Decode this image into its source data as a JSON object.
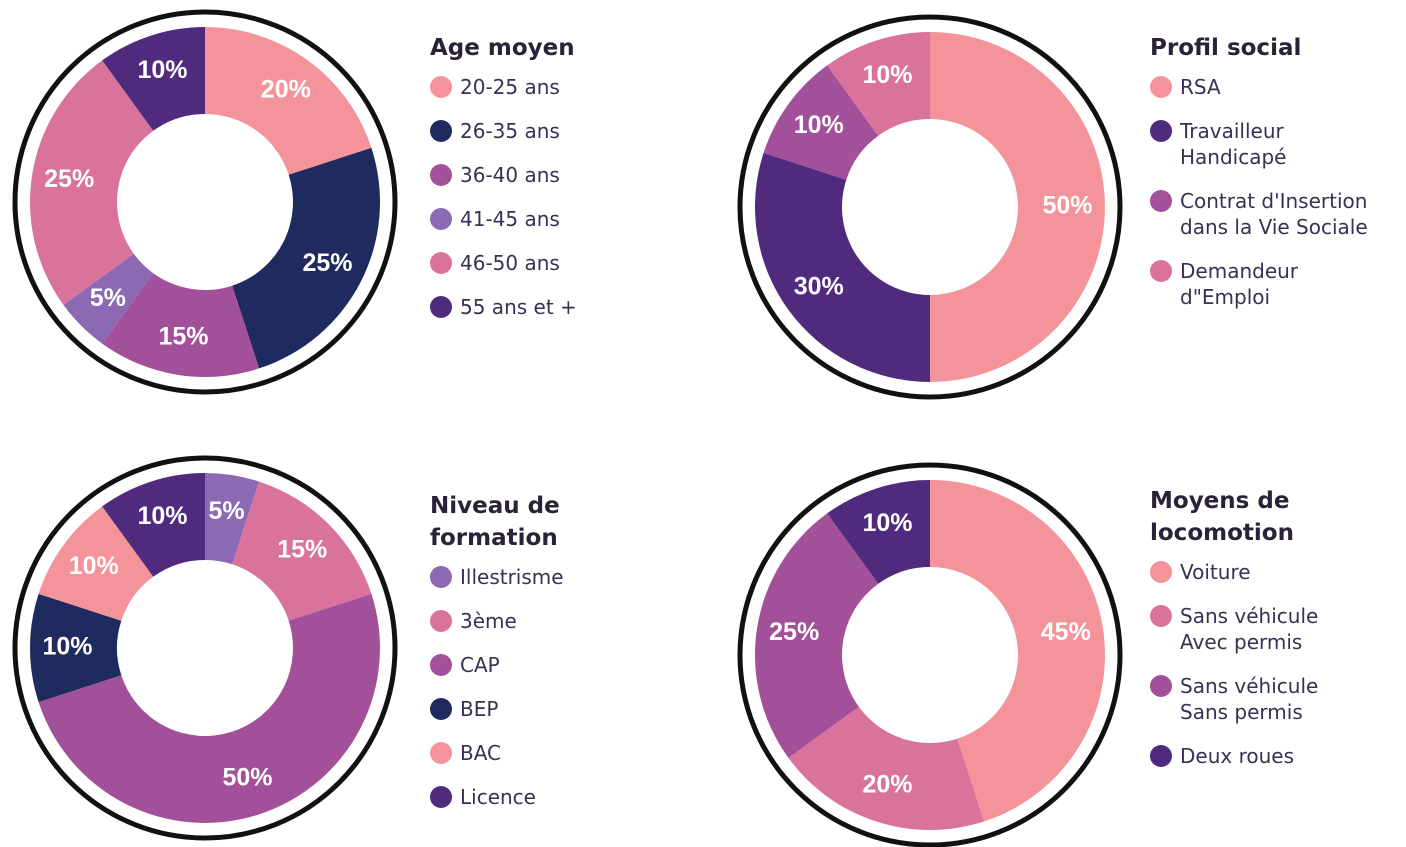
{
  "chart_data": [
    {
      "type": "pie",
      "title": "Age moyen",
      "categories": [
        "20-25 ans",
        "26-35 ans",
        "36-40 ans",
        "41-45 ans",
        "46-50 ans",
        "55 ans et +"
      ],
      "values": [
        20,
        25,
        15,
        5,
        25,
        10
      ],
      "value_labels": [
        "20%",
        "25%",
        "15%",
        "5%",
        "25%",
        "10%"
      ],
      "colors": [
        "#f4949a",
        "#1f2b5e",
        "#a3509a",
        "#8b6ab3",
        "#d9739c",
        "#4f2a7d"
      ]
    },
    {
      "type": "pie",
      "title": "Profil social",
      "categories": [
        "RSA",
        "Travailleur\nHandicapé",
        "Contrat d'Insertion\ndans la Vie Sociale",
        "Demandeur\nd\"Emploi"
      ],
      "values": [
        50,
        30,
        10,
        10
      ],
      "value_labels": [
        "50%",
        "30%",
        "10%",
        "10%"
      ],
      "colors": [
        "#f4949a",
        "#4f2a7d",
        "#a3509a",
        "#d9739c"
      ]
    },
    {
      "type": "pie",
      "title": "Niveau de\nformation",
      "categories": [
        "Illestrisme",
        "3ème",
        "CAP",
        "BEP",
        "BAC",
        "Licence"
      ],
      "values": [
        5,
        15,
        50,
        10,
        10,
        10
      ],
      "value_labels": [
        "5%",
        "15%",
        "50%",
        "10%",
        "10%",
        "10%"
      ],
      "colors": [
        "#8b6ab3",
        "#d9739c",
        "#a3509a",
        "#1f2b5e",
        "#f4949a",
        "#4f2a7d"
      ]
    },
    {
      "type": "pie",
      "title": "Moyens de\nlocomotion",
      "categories": [
        "Voiture",
        "Sans véhicule\nAvec permis",
        "Sans véhicule\nSans permis",
        "Deux roues"
      ],
      "values": [
        45,
        20,
        25,
        10
      ],
      "value_labels": [
        "45%",
        "20%",
        "25%",
        "10%"
      ],
      "colors": [
        "#f4949a",
        "#d9739c",
        "#a3509a",
        "#4f2a7d"
      ]
    }
  ]
}
